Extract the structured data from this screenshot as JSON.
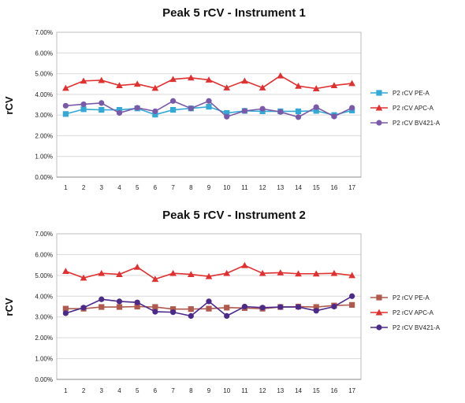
{
  "chart_data": [
    {
      "type": "line",
      "title": "Peak 5 rCV - Instrument 1",
      "xlabel": "",
      "ylabel": "rCV",
      "ylim": [
        0,
        0.07
      ],
      "y_ticks": [
        "0.00%",
        "1.00%",
        "2.00%",
        "3.00%",
        "4.00%",
        "5.00%",
        "6.00%",
        "7.00%"
      ],
      "categories": [
        "1",
        "2",
        "3",
        "4",
        "5",
        "6",
        "7",
        "8",
        "9",
        "10",
        "11",
        "12",
        "13",
        "14",
        "15",
        "16",
        "17"
      ],
      "grid": true,
      "legend": "right",
      "series": [
        {
          "name": "P2 rCV PE-A",
          "color": "#33a9d6",
          "marker": "square",
          "values": [
            0.0305,
            0.0328,
            0.0325,
            0.0325,
            0.0332,
            0.0302,
            0.0325,
            0.0332,
            0.034,
            0.031,
            0.032,
            0.0318,
            0.0318,
            0.0318,
            0.032,
            0.03,
            0.0322
          ]
        },
        {
          "name": "P2 rCV APC-A",
          "color": "#e03030",
          "marker": "triangle",
          "values": [
            0.043,
            0.0465,
            0.0468,
            0.0443,
            0.045,
            0.043,
            0.0473,
            0.048,
            0.047,
            0.0432,
            0.0465,
            0.0432,
            0.049,
            0.044,
            0.0428,
            0.0443,
            0.0453
          ]
        },
        {
          "name": "P2 rCV BV421-A",
          "color": "#7a5aa8",
          "marker": "circle",
          "values": [
            0.0345,
            0.0352,
            0.0358,
            0.031,
            0.0335,
            0.0318,
            0.0368,
            0.0332,
            0.0368,
            0.0292,
            0.032,
            0.033,
            0.0315,
            0.029,
            0.0338,
            0.0293,
            0.0335
          ]
        }
      ]
    },
    {
      "type": "line",
      "title": "Peak 5 rCV - Instrument 2",
      "xlabel": "",
      "ylabel": "rCV",
      "ylim": [
        0,
        0.07
      ],
      "y_ticks": [
        "0.00%",
        "1.00%",
        "2.00%",
        "3.00%",
        "4.00%",
        "5.00%",
        "6.00%",
        "7.00%"
      ],
      "categories": [
        "1",
        "2",
        "3",
        "4",
        "5",
        "6",
        "7",
        "8",
        "9",
        "10",
        "11",
        "12",
        "13",
        "14",
        "15",
        "16",
        "17"
      ],
      "grid": true,
      "legend": "right",
      "series": [
        {
          "name": "P2 rCV PE-A",
          "color": "#b05a4e",
          "marker": "square",
          "values": [
            0.034,
            0.034,
            0.0348,
            0.0348,
            0.035,
            0.0348,
            0.0338,
            0.0338,
            0.034,
            0.0345,
            0.0343,
            0.034,
            0.0348,
            0.035,
            0.0348,
            0.0355,
            0.0358
          ]
        },
        {
          "name": "P2 rCV APC-A",
          "color": "#e03030",
          "marker": "triangle",
          "values": [
            0.052,
            0.0488,
            0.051,
            0.0505,
            0.054,
            0.0482,
            0.051,
            0.0505,
            0.0495,
            0.051,
            0.0548,
            0.051,
            0.0513,
            0.0508,
            0.0508,
            0.051,
            0.05
          ]
        },
        {
          "name": "P2 rCV BV421-A",
          "color": "#4b2a8a",
          "marker": "circle",
          "values": [
            0.0318,
            0.0345,
            0.0385,
            0.0375,
            0.037,
            0.0325,
            0.0323,
            0.0305,
            0.0375,
            0.0305,
            0.035,
            0.0345,
            0.0348,
            0.0348,
            0.033,
            0.035,
            0.04
          ]
        }
      ]
    }
  ]
}
